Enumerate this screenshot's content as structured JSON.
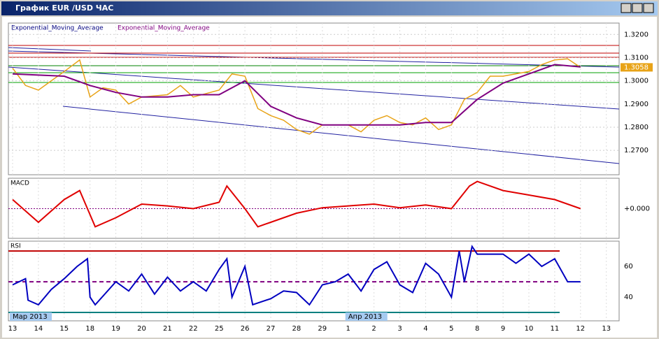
{
  "window": {
    "title": "График EUR /USD ЧАС"
  },
  "price_panel": {
    "legend_a": "Exponential_Moving_Average",
    "legend_b": "Exponential_Moving_Average",
    "ylim": [
      1.2595,
      1.3249
    ],
    "yticks": [
      {
        "value": 1.32,
        "label": "1.3200"
      },
      {
        "value": 1.31,
        "label": "1.3100"
      },
      {
        "value": 1.3,
        "label": "1.3000"
      },
      {
        "value": 1.29,
        "label": "1.2900"
      },
      {
        "value": 1.28,
        "label": "1.2800"
      },
      {
        "value": 1.27,
        "label": "1.2700"
      }
    ],
    "current_price": {
      "value": 1.3058,
      "label": "1.3058"
    },
    "x": [
      0,
      0.5,
      1,
      1.5,
      2,
      2.6,
      3,
      3.5,
      4,
      4.5,
      5,
      6,
      6.5,
      7,
      8,
      8.5,
      9,
      9.5,
      10,
      10.5,
      11,
      11.5,
      12,
      13,
      13.5,
      14,
      14.5,
      15,
      15.5,
      16,
      16.5,
      17,
      17.5,
      18,
      18.5,
      19,
      20,
      20.5,
      21,
      21.5,
      22
    ],
    "values": [
      1.3055,
      1.298,
      1.296,
      1.3,
      1.304,
      1.309,
      1.293,
      1.297,
      1.296,
      1.29,
      1.293,
      1.294,
      1.298,
      1.293,
      1.296,
      1.303,
      1.302,
      1.288,
      1.285,
      1.283,
      1.279,
      1.277,
      1.281,
      1.281,
      1.278,
      1.283,
      1.285,
      1.282,
      1.281,
      1.284,
      1.279,
      1.281,
      1.292,
      1.295,
      1.302,
      1.302,
      1.304,
      1.307,
      1.309,
      1.3095,
      1.3058
    ],
    "ema_x": [
      0,
      2,
      3,
      4,
      5,
      6,
      7,
      8,
      9,
      10,
      11,
      12,
      13,
      14,
      15,
      16,
      17,
      18,
      19,
      20,
      21,
      22
    ],
    "ema_values": [
      1.303,
      1.302,
      1.298,
      1.295,
      1.293,
      1.293,
      1.294,
      1.294,
      1.3,
      1.289,
      1.284,
      1.281,
      1.281,
      1.281,
      1.281,
      1.282,
      1.282,
      1.292,
      1.299,
      1.303,
      1.307,
      1.306
    ]
  },
  "macd_panel": {
    "label": "MACD",
    "ylim": [
      -0.0032,
      0.0032
    ],
    "zero_tick": {
      "value": 0,
      "label": "+0.000"
    },
    "x": [
      0,
      1,
      2,
      2.6,
      3.2,
      4,
      5,
      6,
      7,
      8,
      8.3,
      9,
      9.5,
      10,
      11,
      12,
      13,
      14,
      15,
      16,
      17,
      17.7,
      18,
      19,
      20,
      21,
      22
    ],
    "values": [
      0.001,
      -0.0015,
      0.001,
      0.002,
      -0.002,
      -0.001,
      0.0005,
      0.0003,
      0,
      0.0007,
      0.0025,
      0,
      -0.002,
      -0.0015,
      -0.0005,
      0.0001,
      0.0003,
      0.0005,
      0.0001,
      0.0004,
      0,
      0.0025,
      0.003,
      0.002,
      0.0015,
      0.001,
      0
    ]
  },
  "rsi_panel": {
    "label": "RSI",
    "ylim": [
      25,
      76
    ],
    "yticks": [
      60,
      40
    ],
    "levels": [
      70,
      50,
      30
    ],
    "x": [
      0,
      0.5,
      0.6,
      1,
      1.5,
      2,
      2.5,
      2.9,
      3,
      3.2,
      4,
      4.5,
      5,
      5.5,
      6,
      6.5,
      7,
      7.5,
      8,
      8.3,
      8.5,
      9,
      9.3,
      10,
      10.5,
      11,
      11.5,
      12,
      12.5,
      13,
      13.5,
      14,
      14.5,
      15,
      15.5,
      16,
      16.5,
      17,
      17.3,
      17.5,
      17.8,
      18,
      19,
      19.5,
      20,
      20.5,
      21,
      21.5,
      22
    ],
    "values": [
      48,
      52,
      38,
      35,
      45,
      52,
      60,
      65,
      40,
      35,
      50,
      44,
      55,
      42,
      53,
      44,
      50,
      44,
      58,
      65,
      40,
      60,
      35,
      39,
      44,
      43,
      35,
      48,
      50,
      55,
      44,
      58,
      63,
      48,
      43,
      62,
      55,
      40,
      70,
      50,
      73,
      68,
      68,
      62,
      68,
      60,
      65,
      50,
      50
    ]
  },
  "x_axis": {
    "labels": [
      "13",
      "14",
      "15",
      "18",
      "19",
      "20",
      "21",
      "22",
      "25",
      "26",
      "27",
      "28",
      "29",
      "1",
      "2",
      "3",
      "4",
      "5",
      "8",
      "9",
      "10",
      "11",
      "12",
      "13"
    ],
    "months": [
      "Мар 2013",
      "Апр 2013"
    ]
  }
}
